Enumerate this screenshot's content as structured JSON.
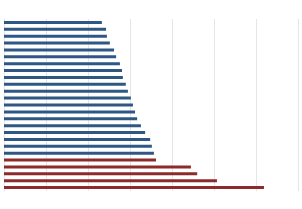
{
  "chart_data": {
    "type": "bar",
    "orientation": "horizontal",
    "categories": [
      null,
      null,
      null,
      null,
      null,
      null,
      null,
      null,
      null,
      null,
      null,
      null,
      null,
      null,
      null,
      null,
      null,
      null,
      null,
      null,
      null,
      null,
      null,
      null,
      null
    ],
    "values": [
      2.33,
      2.43,
      2.45,
      2.52,
      2.62,
      2.67,
      2.76,
      2.81,
      2.83,
      2.9,
      2.95,
      3.02,
      3.07,
      3.12,
      3.17,
      3.26,
      3.36,
      3.48,
      3.52,
      3.57,
      3.62,
      4.45,
      4.6,
      5.07,
      6.19
    ],
    "colors": [
      "#2f5783",
      "#2f5783",
      "#2f5783",
      "#2f5783",
      "#2f5783",
      "#2f5783",
      "#2f5783",
      "#2f5783",
      "#2f5783",
      "#2f5783",
      "#2f5783",
      "#2f5783",
      "#2f5783",
      "#2f5783",
      "#2f5783",
      "#2f5783",
      "#2f5783",
      "#2f5783",
      "#2f5783",
      "#2f5783",
      "#8b2b2b",
      "#8b2b2b",
      "#8b2b2b",
      "#8b2b2b",
      "#8b2b2b"
    ],
    "xlim": [
      0,
      7
    ],
    "xticks": [
      0,
      1,
      2,
      3,
      4,
      5,
      6,
      7
    ],
    "grid": true,
    "tick_labels": false
  }
}
